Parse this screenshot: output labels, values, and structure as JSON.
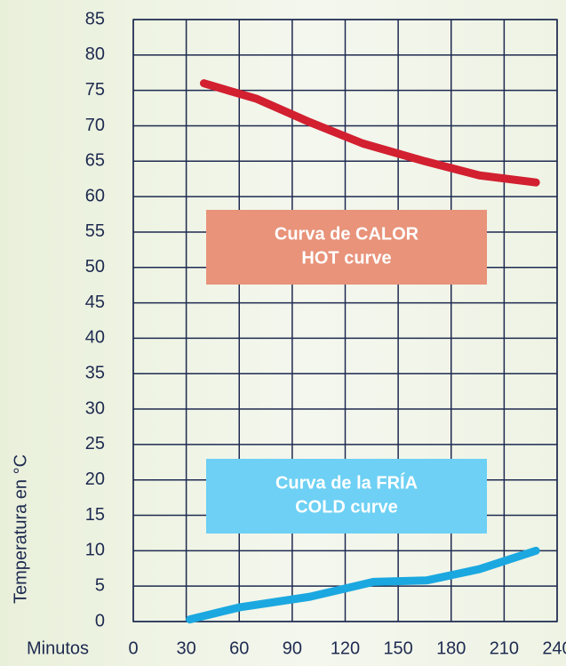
{
  "chart_data": {
    "type": "line",
    "xlabel": "Minutos",
    "ylabel": "Temperatura en °C",
    "xlim": [
      0,
      240
    ],
    "xticks": [
      0,
      30,
      60,
      90,
      120,
      150,
      180,
      210,
      240
    ],
    "ylim": [
      0,
      85
    ],
    "yticks": [
      0,
      5,
      10,
      15,
      20,
      25,
      30,
      35,
      40,
      45,
      50,
      55,
      60,
      65,
      70,
      75,
      80,
      85
    ],
    "grid": true,
    "series": [
      {
        "color": "#d22030",
        "x": [
          40,
          70,
          100,
          130,
          165,
          196,
          228
        ],
        "values": [
          76,
          73.8,
          70.5,
          67.5,
          65,
          63,
          62
        ]
      },
      {
        "color": "#1ba8e0",
        "x": [
          32,
          60,
          100,
          136,
          166,
          196,
          228
        ],
        "values": [
          0.3,
          2,
          3.5,
          5.6,
          5.8,
          7.4,
          10
        ]
      }
    ],
    "annotations": [
      {
        "lines": [
          "Curva de CALOR",
          "HOT curve"
        ],
        "color": "#e8937a"
      },
      {
        "lines": [
          "Curva de la FRÍA",
          "COLD curve"
        ],
        "color": "#6dd0f4"
      }
    ]
  }
}
